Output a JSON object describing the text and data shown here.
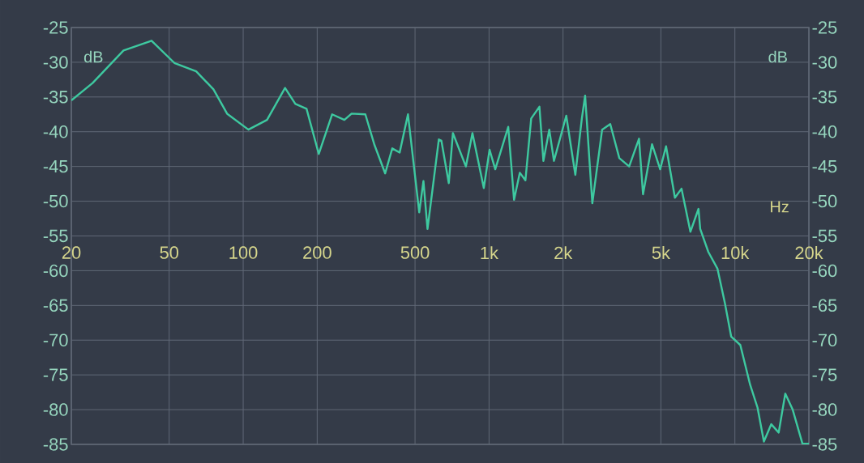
{
  "chart_data": {
    "type": "line",
    "xlabel": "Hz",
    "ylabel": "dB",
    "y2label": "dB",
    "log": "x",
    "grid": true,
    "marker": "none",
    "line_style": "solid",
    "xlim": [
      20,
      20000
    ],
    "ylim": [
      -85,
      -25
    ],
    "y2lim": [
      -85,
      -25
    ],
    "xticks": [
      20,
      50,
      100,
      200,
      500,
      {
        "value": 1000,
        "label": "1k"
      },
      {
        "value": 2000,
        "label": "2k"
      },
      {
        "value": 5000,
        "label": "5k"
      },
      {
        "value": 10000,
        "label": "10k"
      },
      {
        "value": 20000,
        "label": "20k"
      }
    ],
    "yticks": [
      -85,
      -80,
      -75,
      -70,
      -65,
      -60,
      -55,
      -50,
      -45,
      -40,
      -35,
      -30,
      -25
    ],
    "y2ticks": [
      -85,
      -80,
      -75,
      -70,
      -65,
      -60,
      -55,
      -50,
      -45,
      -40,
      -35,
      -30,
      -25
    ],
    "x": [
      20,
      24.4,
      32.6,
      42.4,
      52.5,
      64.4,
      75.7,
      86,
      105,
      125,
      148,
      163,
      181,
      203,
      230,
      258,
      276,
      314,
      342,
      378,
      404,
      433,
      468,
      520,
      541,
      562,
      625,
      640,
      686,
      713,
      805,
      856,
      952,
      1005,
      1060,
      1197,
      1264,
      1334,
      1406,
      1484,
      1603,
      1664,
      1758,
      1837,
      2061,
      2244,
      2385,
      2459,
      2631,
      2884,
      3112,
      3388,
      3715,
      4074,
      4230,
      4602,
      4966,
      5248,
      5702,
      6067,
      6592,
      7112,
      7228,
      7798,
      8492,
      9099,
      9661,
      10520,
      11530,
      12360,
      13120,
      14060,
      15070,
      16030,
      17180,
      18830,
      20000
    ],
    "series": [
      {
        "color": "#3ec9a0",
        "values": [
          -35.5,
          -33.0,
          -28.3,
          -26.9,
          -30.1,
          -31.3,
          -33.9,
          -37.4,
          -39.7,
          -38.3,
          -33.7,
          -36.0,
          -36.7,
          -43.2,
          -37.5,
          -38.3,
          -37.4,
          -37.5,
          -41.9,
          -46.0,
          -42.4,
          -43.0,
          -37.5,
          -51.6,
          -47.1,
          -54.0,
          -41.1,
          -41.3,
          -47.4,
          -40.2,
          -45.0,
          -40.2,
          -48.1,
          -42.6,
          -45.4,
          -39.3,
          -49.8,
          -45.9,
          -47.0,
          -38.1,
          -36.4,
          -44.2,
          -39.7,
          -44.2,
          -37.7,
          -46.2,
          -38.1,
          -34.8,
          -50.3,
          -39.7,
          -38.9,
          -43.8,
          -45.0,
          -41.0,
          -49.0,
          -41.8,
          -45.4,
          -42.1,
          -49.5,
          -48.2,
          -54.4,
          -51.1,
          -54.0,
          -57.3,
          -59.7,
          -64.6,
          -69.5,
          -70.7,
          -76.4,
          -79.7,
          -84.6,
          -82.1,
          -83.3,
          -77.7,
          -80.0,
          -84.9,
          -84.9
        ]
      }
    ]
  }
}
